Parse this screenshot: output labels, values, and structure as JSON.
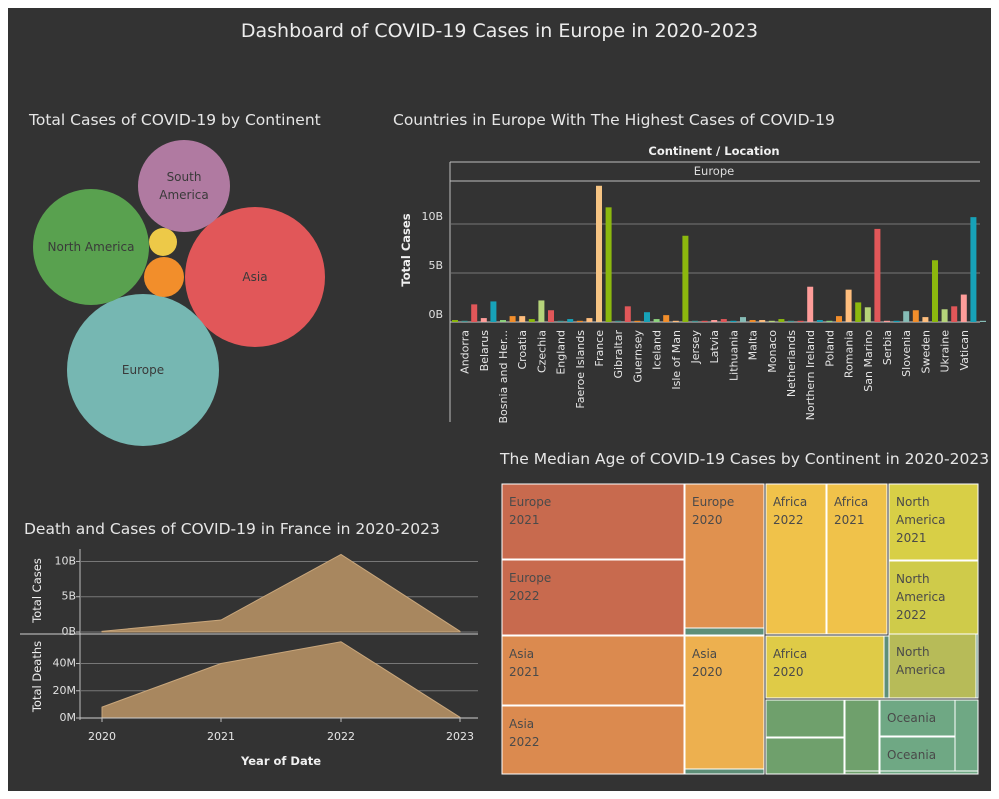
{
  "dashboard": {
    "title": "Dashboard of COVID-19 Cases in Europe in 2020-2023"
  },
  "bubble": {
    "title": "Total Cases of COVID-19 by Continent",
    "chart_data": {
      "type": "bubble",
      "items": [
        {
          "name": "Asia",
          "label": "Asia",
          "color": "#e15759"
        },
        {
          "name": "Europe",
          "label": "Europe",
          "color": "#76b7b2"
        },
        {
          "name": "North America",
          "label": "North America",
          "color": "#59a14f"
        },
        {
          "name": "South America",
          "label": "South\nAmerica",
          "color": "#b07aa1"
        },
        {
          "name": "Africa",
          "label": "",
          "color": "#f28e2b"
        },
        {
          "name": "Oceania",
          "label": "",
          "color": "#edc948"
        }
      ]
    }
  },
  "bars": {
    "title": "Countries in Europe With The Highest Cases of COVID-19",
    "chart_data": {
      "type": "bar",
      "header": "Continent / Location",
      "group": "Europe",
      "ylabel": "Total Cases",
      "yticks": [
        "0B",
        "5B",
        "10B"
      ],
      "ytick_values": [
        0,
        5,
        10
      ],
      "ylim": [
        0,
        14
      ],
      "bars": [
        {
          "v": 0.2,
          "c": "#8cb80e"
        },
        {
          "v": 0.1,
          "c": "#499894"
        },
        {
          "v": 1.8,
          "c": "#e15759"
        },
        {
          "v": 0.4,
          "c": "#ff9d9a"
        },
        {
          "v": 2.1,
          "c": "#17a2b8"
        },
        {
          "v": 0.2,
          "c": "#8cd17d"
        },
        {
          "v": 0.6,
          "c": "#f28e2b"
        },
        {
          "v": 0.6,
          "c": "#ffbe7d"
        },
        {
          "v": 0.3,
          "c": "#8cb80e"
        },
        {
          "v": 2.2,
          "c": "#b6d47a"
        },
        {
          "v": 1.2,
          "c": "#e15759"
        },
        {
          "v": 0.05,
          "c": "#499894"
        },
        {
          "v": 0.3,
          "c": "#17a2b8"
        },
        {
          "v": 0.1,
          "c": "#f28e2b"
        },
        {
          "v": 0.4,
          "c": "#ffbe7d"
        },
        {
          "v": 13.9,
          "c": "#f6c483"
        },
        {
          "v": 11.7,
          "c": "#8cb80e"
        },
        {
          "v": 0.05,
          "c": "#499894"
        },
        {
          "v": 1.6,
          "c": "#e15759"
        },
        {
          "v": 0.05,
          "c": "#f28e2b"
        },
        {
          "v": 1.0,
          "c": "#17a2b8"
        },
        {
          "v": 0.3,
          "c": "#8cd17d"
        },
        {
          "v": 0.7,
          "c": "#f28e2b"
        },
        {
          "v": 0.05,
          "c": "#ffbe7d"
        },
        {
          "v": 8.8,
          "c": "#8cb80e"
        },
        {
          "v": 0.05,
          "c": "#499894"
        },
        {
          "v": 0.1,
          "c": "#e15759"
        },
        {
          "v": 0.2,
          "c": "#ff9d9a"
        },
        {
          "v": 0.3,
          "c": "#e15759"
        },
        {
          "v": 0.05,
          "c": "#17a2b8"
        },
        {
          "v": 0.5,
          "c": "#86bcb6"
        },
        {
          "v": 0.2,
          "c": "#f28e2b"
        },
        {
          "v": 0.2,
          "c": "#ffbe7d"
        },
        {
          "v": 0.1,
          "c": "#b6d47a"
        },
        {
          "v": 0.3,
          "c": "#8cb80e"
        },
        {
          "v": 0.05,
          "c": "#499894"
        },
        {
          "v": 0.1,
          "c": "#e15759"
        },
        {
          "v": 3.6,
          "c": "#ff9d9a"
        },
        {
          "v": 0.2,
          "c": "#17a2b8"
        },
        {
          "v": 0.05,
          "c": "#8cd17d"
        },
        {
          "v": 0.6,
          "c": "#f28e2b"
        },
        {
          "v": 3.3,
          "c": "#ffbe7d"
        },
        {
          "v": 2.0,
          "c": "#8cb80e"
        },
        {
          "v": 1.5,
          "c": "#b6d47a"
        },
        {
          "v": 9.5,
          "c": "#e15759"
        },
        {
          "v": 0.05,
          "c": "#ff9d9a"
        },
        {
          "v": 0.05,
          "c": "#17a2b8"
        },
        {
          "v": 1.1,
          "c": "#86bcb6"
        },
        {
          "v": 1.2,
          "c": "#f28e2b"
        },
        {
          "v": 0.5,
          "c": "#ffbe7d"
        },
        {
          "v": 6.3,
          "c": "#8cb80e"
        },
        {
          "v": 1.3,
          "c": "#b6d47a"
        },
        {
          "v": 1.6,
          "c": "#e15759"
        },
        {
          "v": 2.8,
          "c": "#ff9d9a"
        },
        {
          "v": 10.7,
          "c": "#17a2b8"
        },
        {
          "v": 0.05,
          "c": "#86bcb6"
        }
      ],
      "labels": [
        {
          "text": "Andorra",
          "i": 1
        },
        {
          "text": "Belarus",
          "i": 3
        },
        {
          "text": "Bosnia and Her...",
          "i": 5
        },
        {
          "text": "Croatia",
          "i": 7
        },
        {
          "text": "Czechia",
          "i": 9
        },
        {
          "text": "England",
          "i": 11
        },
        {
          "text": "Faeroe Islands",
          "i": 13
        },
        {
          "text": "France",
          "i": 15
        },
        {
          "text": "Gibraltar",
          "i": 17
        },
        {
          "text": "Guernsey",
          "i": 19
        },
        {
          "text": "Iceland",
          "i": 21
        },
        {
          "text": "Isle of Man",
          "i": 23
        },
        {
          "text": "Jersey",
          "i": 25
        },
        {
          "text": "Latvia",
          "i": 27
        },
        {
          "text": "Lithuania",
          "i": 29
        },
        {
          "text": "Malta",
          "i": 31
        },
        {
          "text": "Monaco",
          "i": 33
        },
        {
          "text": "Netherlands",
          "i": 35
        },
        {
          "text": "Northern Ireland",
          "i": 37
        },
        {
          "text": "Poland",
          "i": 39
        },
        {
          "text": "Romania",
          "i": 41
        },
        {
          "text": "San Marino",
          "i": 43
        },
        {
          "text": "Serbia",
          "i": 45
        },
        {
          "text": "Slovenia",
          "i": 47
        },
        {
          "text": "Sweden",
          "i": 49
        },
        {
          "text": "Ukraine",
          "i": 51
        },
        {
          "text": "Vatican",
          "i": 53
        }
      ]
    }
  },
  "france": {
    "title": "Death and Cases of COVID-19 in France in 2020-2023",
    "chart_data": {
      "type": "area",
      "x": [
        "2020",
        "2021",
        "2022",
        "2023"
      ],
      "xlabel": "Year of Date",
      "series": [
        {
          "name": "Total Cases",
          "ylabel": "Total Cases",
          "values": [
            0.1,
            1.7,
            11.0,
            0.1
          ],
          "yticks": [
            "0B",
            "5B",
            "10B"
          ],
          "ytick_values": [
            0,
            5,
            10
          ],
          "ylim": [
            0,
            11.2
          ]
        },
        {
          "name": "Total Deaths",
          "ylabel": "Total Deaths",
          "values": [
            8,
            40,
            56,
            0.5
          ],
          "yticks": [
            "0M",
            "20M",
            "40M"
          ],
          "ytick_values": [
            0,
            20,
            40
          ],
          "ylim": [
            0,
            58
          ]
        }
      ],
      "color": "#a8875f"
    }
  },
  "treemap": {
    "title": "The Median Age of COVID-19 Cases by Continent in 2020-2023",
    "chart_data": {
      "type": "treemap",
      "cells": [
        {
          "label": "Europe\n2021",
          "color": "#c86a4e"
        },
        {
          "label": "Europe\n2022",
          "color": "#c86a4e"
        },
        {
          "label": "Europe\n2020",
          "color": "#e0914f"
        },
        {
          "label": "",
          "color": "#5e8f78"
        },
        {
          "label": "Asia\n2021",
          "color": "#db8a4f"
        },
        {
          "label": "Asia\n2022",
          "color": "#db8a4f"
        },
        {
          "label": "Asia\n2020",
          "color": "#edb04f"
        },
        {
          "label": "",
          "color": "#5e8f78"
        },
        {
          "label": "Africa\n2022",
          "color": "#f0c24a"
        },
        {
          "label": "Africa\n2021",
          "color": "#f0c24a"
        },
        {
          "label": "Africa\n2020",
          "color": "#dfcb47"
        },
        {
          "label": "",
          "color": "#5e8f78"
        },
        {
          "label": "North\nAmerica\n2021",
          "color": "#d8cf46"
        },
        {
          "label": "North\nAmerica\n2022",
          "color": "#cfcb4a"
        },
        {
          "label": "North\nAmerica",
          "color": "#b7bb58"
        },
        {
          "label": "",
          "color": "#5e8f78"
        },
        {
          "label": "",
          "color": "#6fa06c"
        },
        {
          "label": "",
          "color": "#6fa06c"
        },
        {
          "label": "",
          "color": "#6fa06c"
        },
        {
          "label": "",
          "color": "#6fa06c"
        },
        {
          "label": "Oceania",
          "color": "#6fa884"
        },
        {
          "label": "Oceania",
          "color": "#6fa884"
        },
        {
          "label": "",
          "color": "#6fa884"
        },
        {
          "label": "",
          "color": "#6fa884"
        }
      ]
    }
  }
}
